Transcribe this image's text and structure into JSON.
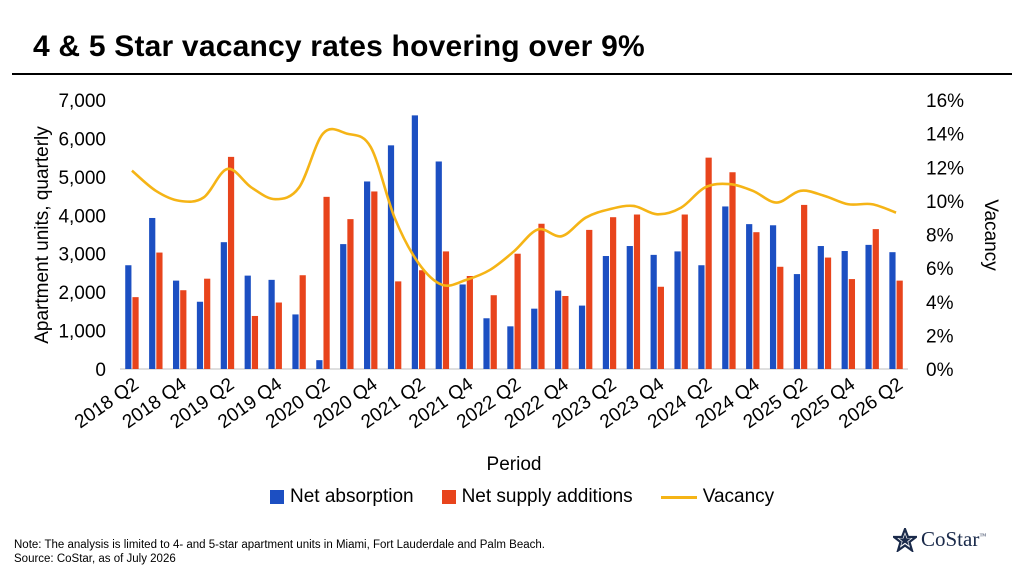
{
  "title": "4 & 5 Star vacancy rates hovering over 9%",
  "legend": {
    "absorption": "Net absorption",
    "supply": "Net supply additions",
    "vacancy": "Vacancy"
  },
  "notes": {
    "note": "Note: The analysis is limited to 4- and 5-star apartment units in Miami, Fort Lauderdale and Palm Beach.",
    "source": "Source: CoStar, as of July 2026"
  },
  "logo": {
    "text": "CoStar",
    "tm": "™"
  },
  "colors": {
    "absorption": "#1c4fc2",
    "supply": "#e8441c",
    "vacancy": "#f5b416"
  },
  "chart_data": {
    "type": "bar",
    "xlabel": "Period",
    "ylabel": "Apartment units, quarterly",
    "y2label": "Vacancy",
    "ylim": [
      0,
      7000
    ],
    "y2lim": [
      0,
      16
    ],
    "y_ticks": [
      "0",
      "1,000",
      "2,000",
      "3,000",
      "4,000",
      "5,000",
      "6,000",
      "7,000"
    ],
    "y2_ticks": [
      "0%",
      "2%",
      "4%",
      "6%",
      "8%",
      "10%",
      "12%",
      "14%",
      "16%"
    ],
    "x_tick_labels": [
      "2018 Q2",
      "2018 Q4",
      "2019 Q2",
      "2019 Q4",
      "2020 Q2",
      "2020 Q4",
      "2021 Q2",
      "2021 Q4",
      "2022 Q2",
      "2022 Q4",
      "2023 Q2",
      "2023 Q4",
      "2024 Q2",
      "2024 Q4",
      "2025 Q2",
      "2025 Q4",
      "2026 Q2"
    ],
    "categories": [
      "2018 Q2",
      "2018 Q3",
      "2018 Q4",
      "2019 Q1",
      "2019 Q2",
      "2019 Q3",
      "2019 Q4",
      "2020 Q1",
      "2020 Q2",
      "2020 Q3",
      "2020 Q4",
      "2021 Q1",
      "2021 Q2",
      "2021 Q3",
      "2021 Q4",
      "2022 Q1",
      "2022 Q2",
      "2022 Q3",
      "2022 Q4",
      "2023 Q1",
      "2023 Q2",
      "2023 Q3",
      "2023 Q4",
      "2024 Q1",
      "2024 Q2",
      "2024 Q3",
      "2024 Q4",
      "2025 Q1",
      "2025 Q2",
      "2025 Q3",
      "2025 Q4",
      "2026 Q1",
      "2026 Q2"
    ],
    "series": [
      {
        "name": "Net absorption",
        "kind": "bar",
        "values": [
          2700,
          3930,
          2300,
          1750,
          3300,
          2430,
          2320,
          1420,
          230,
          3250,
          4880,
          5820,
          6600,
          5400,
          2200,
          1320,
          1110,
          1570,
          2040,
          1650,
          2940,
          3200,
          2970,
          3060,
          2700,
          4230,
          3770,
          3740,
          2470,
          3200,
          3070,
          3230,
          3040
        ]
      },
      {
        "name": "Net supply additions",
        "kind": "bar",
        "values": [
          1870,
          3030,
          2050,
          2350,
          5520,
          1380,
          1730,
          2440,
          4480,
          3900,
          4620,
          2280,
          2570,
          3060,
          2420,
          1920,
          3000,
          3780,
          1900,
          3620,
          3950,
          4020,
          2140,
          4020,
          5500,
          5120,
          3560,
          2660,
          4270,
          2900,
          2340,
          3640,
          2300
        ]
      },
      {
        "name": "Vacancy",
        "kind": "line",
        "values": [
          11.8,
          10.6,
          10.0,
          10.2,
          11.9,
          10.8,
          10.1,
          10.8,
          14.0,
          14.0,
          13.2,
          9.0,
          6.3,
          5.0,
          5.3,
          5.9,
          7.0,
          8.3,
          7.9,
          9.0,
          9.5,
          9.7,
          9.2,
          9.6,
          10.8,
          11.0,
          10.6,
          9.9,
          10.6,
          10.3,
          9.8,
          9.8,
          9.3
        ]
      }
    ],
    "legend_position": "bottom",
    "grid": false
  }
}
